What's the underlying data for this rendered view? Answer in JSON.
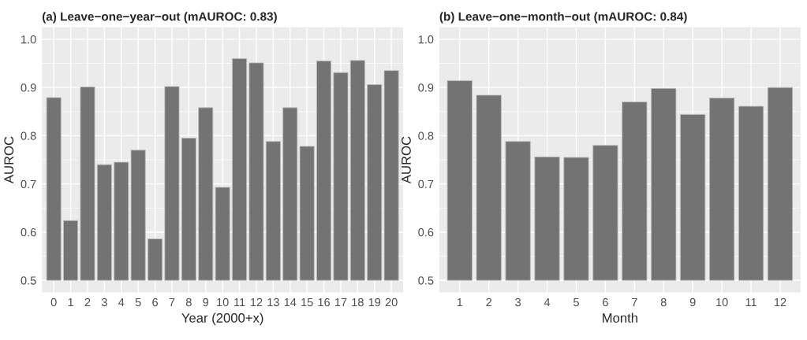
{
  "chart_data": [
    {
      "type": "bar",
      "title": "(a) Leave−one−year−out (mAUROC: 0.83)",
      "xlabel": "Year (2000+x)",
      "ylabel": "AUROC",
      "categories": [
        "0",
        "1",
        "2",
        "3",
        "4",
        "5",
        "6",
        "7",
        "8",
        "9",
        "10",
        "11",
        "12",
        "13",
        "14",
        "15",
        "16",
        "17",
        "18",
        "19",
        "20"
      ],
      "base": [
        0.5,
        0.5,
        0.5,
        0.5,
        0.5,
        0.5,
        0.5,
        0.5,
        0.5,
        0.5,
        0.5,
        0.5,
        0.5,
        0.5,
        0.5,
        0.5,
        0.5,
        0.5,
        0.5,
        0.5,
        0.5
      ],
      "values": [
        0.379,
        0.124,
        0.401,
        0.24,
        0.245,
        0.27,
        0.086,
        0.402,
        0.295,
        0.358,
        0.193,
        0.46,
        0.451,
        0.288,
        0.358,
        0.278,
        0.455,
        0.431,
        0.456,
        0.406,
        0.435
      ],
      "color": "#737373",
      "ylim": [
        0.475,
        1.025
      ],
      "yticks": [
        0.5,
        0.6,
        0.7,
        0.8,
        0.9,
        {
          "value": 1.0,
          "label": "1.0"
        }
      ],
      "grid": true,
      "legend": false
    },
    {
      "type": "bar",
      "title": "(b) Leave−one−month−out (mAUROC: 0.84)",
      "xlabel": "Month",
      "ylabel": "AUROC",
      "categories": [
        "1",
        "2",
        "3",
        "4",
        "5",
        "6",
        "7",
        "8",
        "9",
        "10",
        "11",
        "12"
      ],
      "base": [
        0.5,
        0.5,
        0.5,
        0.5,
        0.5,
        0.5,
        0.5,
        0.5,
        0.5,
        0.5,
        0.5,
        0.5
      ],
      "values": [
        0.414,
        0.384,
        0.288,
        0.256,
        0.255,
        0.28,
        0.37,
        0.398,
        0.344,
        0.378,
        0.361,
        0.4
      ],
      "color": "#737373",
      "ylim": [
        0.475,
        1.025
      ],
      "yticks": [
        0.5,
        0.6,
        0.7,
        0.8,
        0.9,
        {
          "value": 1.0,
          "label": "1.0"
        }
      ],
      "grid": true,
      "legend": false
    }
  ]
}
